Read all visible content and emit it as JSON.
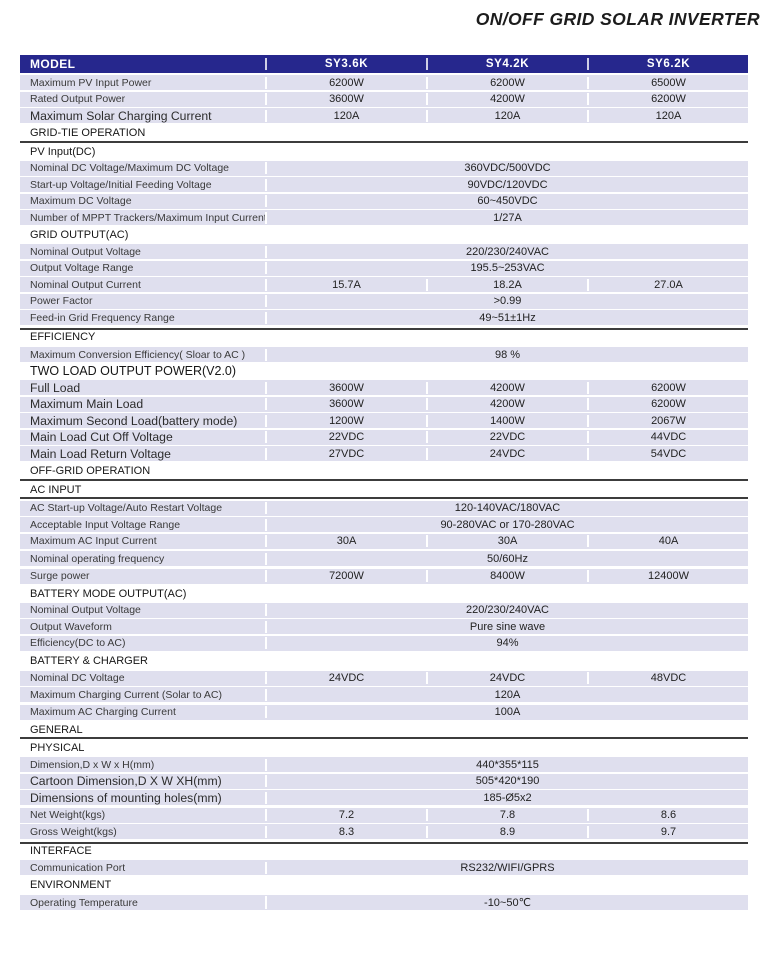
{
  "page_title": "ON/OFF GRID SOLAR INVERTER",
  "colors": {
    "header_bg": "#26278d",
    "header_text": "#ffffff",
    "row_bg": "#dfdfee",
    "section_line": "#3c3c3c",
    "label_text": "#3a3a3a",
    "value_text": "#222222",
    "title_text": "#1c1c1c"
  },
  "table": {
    "models": [
      "SY3.6K",
      "SY4.2K",
      "SY6.2K"
    ],
    "rows": [
      {
        "kind": "models",
        "label": "MODEL"
      },
      {
        "kind": "spec",
        "label": "Maximum PV Input Power",
        "values": [
          "6200W",
          "6200W",
          "6500W"
        ]
      },
      {
        "kind": "spec",
        "label": "Rated Output Power",
        "values": [
          "3600W",
          "4200W",
          "6200W"
        ]
      },
      {
        "kind": "spec",
        "big": true,
        "label": "Maximum Solar Charging Current",
        "values": [
          "120A",
          "120A",
          "120A"
        ]
      },
      {
        "kind": "section",
        "underline": true,
        "gap": true,
        "label": "GRID-TIE OPERATION"
      },
      {
        "kind": "section",
        "label": "PV Input(DC)"
      },
      {
        "kind": "spec",
        "label": "Nominal DC Voltage/Maximum DC Voltage",
        "span": "360VDC/500VDC"
      },
      {
        "kind": "spec",
        "label": "Start-up Voltage/Initial Feeding Voltage",
        "span": "90VDC/120VDC"
      },
      {
        "kind": "spec",
        "label": "Maximum DC Voltage",
        "span": "60~450VDC"
      },
      {
        "kind": "spec",
        "label": "Number of MPPT Trackers/Maximum Input Current",
        "span": "1/27A"
      },
      {
        "kind": "section",
        "gap": true,
        "label": "GRID OUTPUT(AC)"
      },
      {
        "kind": "spec",
        "label": "Nominal Output Voltage",
        "span": "220/230/240VAC"
      },
      {
        "kind": "spec",
        "label": "Output Voltage Range",
        "span": "195.5~253VAC"
      },
      {
        "kind": "spec",
        "label": "Nominal Output Current",
        "values": [
          "15.7A",
          "18.2A",
          "27.0A"
        ]
      },
      {
        "kind": "spec",
        "label": "Power Factor",
        "span": ">0.99"
      },
      {
        "kind": "spec",
        "label": "Feed-in Grid Frequency Range",
        "span": "49~51±1Hz"
      },
      {
        "kind": "section",
        "topline": true,
        "gap": true,
        "label": "EFFICIENCY"
      },
      {
        "kind": "spec",
        "gap": true,
        "label": "Maximum Conversion Efficiency( Sloar to AC )",
        "span": "98 %"
      },
      {
        "kind": "section",
        "big": true,
        "label": "TWO LOAD OUTPUT POWER(V2.0)"
      },
      {
        "kind": "spec",
        "big": true,
        "label": "Full Load",
        "values": [
          "3600W",
          "4200W",
          "6200W"
        ]
      },
      {
        "kind": "spec",
        "big": true,
        "label": "Maximum Main Load",
        "values": [
          "3600W",
          "4200W",
          "6200W"
        ]
      },
      {
        "kind": "spec",
        "big": true,
        "label": "Maximum Second Load(battery mode)",
        "values": [
          "1200W",
          "1400W",
          "2067W"
        ]
      },
      {
        "kind": "spec",
        "big": true,
        "label": "Main Load Cut Off  Voltage",
        "values": [
          "22VDC",
          "22VDC",
          "44VDC"
        ]
      },
      {
        "kind": "spec",
        "big": true,
        "label": "Main Load Return  Voltage",
        "values": [
          "27VDC",
          "24VDC",
          "54VDC"
        ]
      },
      {
        "kind": "section",
        "underline": true,
        "gap": true,
        "label": "OFF-GRID OPERATION"
      },
      {
        "kind": "section",
        "underline": true,
        "label": "AC INPUT"
      },
      {
        "kind": "spec",
        "label": "AC Start-up Voltage/Auto Restart Voltage",
        "span": "120-140VAC/180VAC"
      },
      {
        "kind": "spec",
        "label": "Acceptable Input Voltage Range",
        "span": "90-280VAC or 170-280VAC"
      },
      {
        "kind": "spec",
        "label": "Maximum AC Input Current",
        "values": [
          "30A",
          "30A",
          "40A"
        ]
      },
      {
        "kind": "spec",
        "gap": true,
        "label": "Nominal operating frequency",
        "span": "50/60Hz"
      },
      {
        "kind": "spec",
        "gap": true,
        "label": "Surge power",
        "values": [
          "7200W",
          "8400W",
          "12400W"
        ]
      },
      {
        "kind": "section",
        "gap": true,
        "label": "BATTERY MODE OUTPUT(AC)"
      },
      {
        "kind": "spec",
        "label": "Nominal Output Voltage",
        "span": "220/230/240VAC"
      },
      {
        "kind": "spec",
        "label": "Output Waveform",
        "span": "Pure sine wave"
      },
      {
        "kind": "spec",
        "label": "Efficiency(DC to AC)",
        "span": "94%"
      },
      {
        "kind": "section",
        "gap": true,
        "label": "BATTERY & CHARGER"
      },
      {
        "kind": "spec",
        "gap": true,
        "label": "Nominal DC Voltage",
        "values": [
          "24VDC",
          "24VDC",
          "48VDC"
        ]
      },
      {
        "kind": "spec",
        "label": "Maximum  Charging Current (Solar to AC)",
        "span": "120A"
      },
      {
        "kind": "spec",
        "gap": true,
        "label": "Maximum AC Charging Current",
        "span": "100A"
      },
      {
        "kind": "section",
        "underline": true,
        "gap": true,
        "label": "GENERAL"
      },
      {
        "kind": "section",
        "label": "PHYSICAL"
      },
      {
        "kind": "spec",
        "label": "Dimension,D x W x H(mm)",
        "span": "440*355*115"
      },
      {
        "kind": "spec",
        "big": true,
        "label": "Cartoon Dimension,D X W XH(mm)",
        "span": "505*420*190"
      },
      {
        "kind": "spec",
        "big": true,
        "label": "Dimensions of mounting holes(mm)",
        "span": "185-Ø5x2"
      },
      {
        "kind": "spec",
        "gap": true,
        "label": "Net Weight(kgs)",
        "values": [
          "7.2",
          "7.8",
          "8.6"
        ]
      },
      {
        "kind": "spec",
        "label": "Gross Weight(kgs)",
        "values": [
          "8.3",
          "8.9",
          "9.7"
        ]
      },
      {
        "kind": "section",
        "topline": true,
        "gap": true,
        "label": "INTERFACE"
      },
      {
        "kind": "spec",
        "label": "Communication Port",
        "span": "RS232/WIFI/GPRS"
      },
      {
        "kind": "section",
        "gap": true,
        "label": "ENVIRONMENT"
      },
      {
        "kind": "spec",
        "gap": true,
        "label": "Operating Temperature",
        "span": "-10~50℃"
      }
    ]
  }
}
